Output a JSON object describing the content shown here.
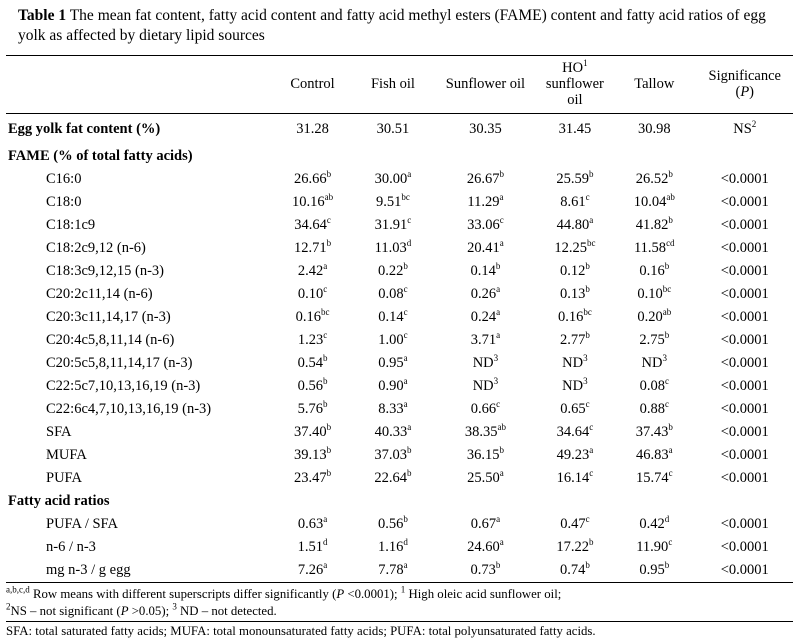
{
  "title": {
    "label": "Table 1",
    "text": "The mean fat content, fatty acid content and fatty acid methyl esters (FAME) content and fatty acid ratios of egg yolk as affected by dietary lipid sources"
  },
  "table": {
    "columns": [
      {
        "segments": []
      },
      {
        "segments": [
          {
            "t": "Control"
          }
        ]
      },
      {
        "segments": [
          {
            "t": "Fish oil"
          }
        ]
      },
      {
        "segments": [
          {
            "t": "Sunflower oil"
          }
        ]
      },
      {
        "segments": [
          {
            "t": "HO"
          },
          {
            "sup": "1"
          },
          {
            "t": " sunflower oil"
          }
        ]
      },
      {
        "segments": [
          {
            "t": "Tallow"
          }
        ]
      },
      {
        "segments": [
          {
            "t": "Significance ("
          },
          {
            "i": "P"
          },
          {
            "t": ")"
          }
        ]
      }
    ],
    "rows": [
      {
        "label": "Egg yolk fat content (%)",
        "bold": true,
        "indent": false,
        "cells": [
          {
            "t": "31.28"
          },
          {
            "t": "30.51"
          },
          {
            "t": "30.35"
          },
          {
            "t": "31.45"
          },
          {
            "t": "30.98"
          },
          {
            "t": "NS",
            "s": "2"
          }
        ]
      },
      {
        "section": "FAME (% of total fatty acids)"
      },
      {
        "label": "C16:0",
        "indent": true,
        "cells": [
          {
            "t": "26.66",
            "s": "b"
          },
          {
            "t": "30.00",
            "s": "a"
          },
          {
            "t": "26.67",
            "s": "b"
          },
          {
            "t": "25.59",
            "s": "b"
          },
          {
            "t": "26.52",
            "s": "b"
          },
          {
            "t": "<0.0001"
          }
        ]
      },
      {
        "label": "C18:0",
        "indent": true,
        "cells": [
          {
            "t": "10.16",
            "s": "ab"
          },
          {
            "t": "9.51",
            "s": "bc"
          },
          {
            "t": "11.29",
            "s": "a"
          },
          {
            "t": "8.61",
            "s": "c"
          },
          {
            "t": "10.04",
            "s": "ab"
          },
          {
            "t": "<0.0001"
          }
        ]
      },
      {
        "label": "C18:1c9",
        "indent": true,
        "cells": [
          {
            "t": "34.64",
            "s": "c"
          },
          {
            "t": "31.91",
            "s": "c"
          },
          {
            "t": "33.06",
            "s": "c"
          },
          {
            "t": "44.80",
            "s": "a"
          },
          {
            "t": "41.82",
            "s": "b"
          },
          {
            "t": "<0.0001"
          }
        ]
      },
      {
        "label": "C18:2c9,12 (n-6)",
        "indent": true,
        "cells": [
          {
            "t": "12.71",
            "s": "b"
          },
          {
            "t": "11.03",
            "s": "d"
          },
          {
            "t": "20.41",
            "s": "a"
          },
          {
            "t": "12.25",
            "s": "bc"
          },
          {
            "t": "11.58",
            "s": "cd"
          },
          {
            "t": "<0.0001"
          }
        ]
      },
      {
        "label": "C18:3c9,12,15 (n-3)",
        "indent": true,
        "cells": [
          {
            "t": "2.42",
            "s": "a"
          },
          {
            "t": "0.22",
            "s": "b"
          },
          {
            "t": "0.14",
            "s": "b"
          },
          {
            "t": "0.12",
            "s": "b"
          },
          {
            "t": "0.16",
            "s": "b"
          },
          {
            "t": "<0.0001"
          }
        ]
      },
      {
        "label": "C20:2c11,14 (n-6)",
        "indent": true,
        "cells": [
          {
            "t": "0.10",
            "s": "c"
          },
          {
            "t": "0.08",
            "s": "c"
          },
          {
            "t": "0.26",
            "s": "a"
          },
          {
            "t": "0.13",
            "s": "b"
          },
          {
            "t": "0.10",
            "s": "bc"
          },
          {
            "t": "<0.0001"
          }
        ]
      },
      {
        "label": "C20:3c11,14,17 (n-3)",
        "indent": true,
        "cells": [
          {
            "t": "0.16",
            "s": "bc"
          },
          {
            "t": "0.14",
            "s": "c"
          },
          {
            "t": "0.24",
            "s": "a"
          },
          {
            "t": "0.16",
            "s": "bc"
          },
          {
            "t": "0.20",
            "s": "ab"
          },
          {
            "t": "<0.0001"
          }
        ]
      },
      {
        "label": "C20:4c5,8,11,14 (n-6)",
        "indent": true,
        "cells": [
          {
            "t": "1.23",
            "s": "c"
          },
          {
            "t": "1.00",
            "s": "c"
          },
          {
            "t": "3.71",
            "s": "a"
          },
          {
            "t": "2.77",
            "s": "b"
          },
          {
            "t": "2.75",
            "s": "b"
          },
          {
            "t": "<0.0001"
          }
        ]
      },
      {
        "label": "C20:5c5,8,11,14,17 (n-3)",
        "indent": true,
        "cells": [
          {
            "t": "0.54",
            "s": "b"
          },
          {
            "t": "0.95",
            "s": "a"
          },
          {
            "t": "ND",
            "s": "3"
          },
          {
            "t": "ND",
            "s": "3"
          },
          {
            "t": "ND",
            "s": "3"
          },
          {
            "t": "<0.0001"
          }
        ]
      },
      {
        "label": "C22:5c7,10,13,16,19 (n-3)",
        "indent": true,
        "cells": [
          {
            "t": "0.56",
            "s": "b"
          },
          {
            "t": "0.90",
            "s": "a"
          },
          {
            "t": "ND",
            "s": "3"
          },
          {
            "t": "ND",
            "s": "3"
          },
          {
            "t": "0.08",
            "s": "c"
          },
          {
            "t": "<0.0001"
          }
        ]
      },
      {
        "label": "C22:6c4,7,10,13,16,19 (n-3)",
        "indent": true,
        "cells": [
          {
            "t": "5.76",
            "s": "b"
          },
          {
            "t": "8.33",
            "s": "a"
          },
          {
            "t": "0.66",
            "s": "c"
          },
          {
            "t": "0.65",
            "s": "c"
          },
          {
            "t": "0.88",
            "s": "c"
          },
          {
            "t": "<0.0001"
          }
        ]
      },
      {
        "label": "SFA",
        "indent": true,
        "cells": [
          {
            "t": "37.40",
            "s": "b"
          },
          {
            "t": "40.33",
            "s": "a"
          },
          {
            "t": "38.35",
            "s": "ab"
          },
          {
            "t": "34.64",
            "s": "c"
          },
          {
            "t": "37.43",
            "s": "b"
          },
          {
            "t": "<0.0001"
          }
        ]
      },
      {
        "label": "MUFA",
        "indent": true,
        "cells": [
          {
            "t": "39.13",
            "s": "b"
          },
          {
            "t": "37.03",
            "s": "b"
          },
          {
            "t": "36.15",
            "s": "b"
          },
          {
            "t": "49.23",
            "s": "a"
          },
          {
            "t": "46.83",
            "s": "a"
          },
          {
            "t": "<0.0001"
          }
        ]
      },
      {
        "label": "PUFA",
        "indent": true,
        "cells": [
          {
            "t": "23.47",
            "s": "b"
          },
          {
            "t": "22.64",
            "s": "b"
          },
          {
            "t": "25.50",
            "s": "a"
          },
          {
            "t": "16.14",
            "s": "c"
          },
          {
            "t": "15.74",
            "s": "c"
          },
          {
            "t": "<0.0001"
          }
        ]
      },
      {
        "section": "Fatty acid ratios"
      },
      {
        "label": "PUFA / SFA",
        "indent": true,
        "cells": [
          {
            "t": "0.63",
            "s": "a"
          },
          {
            "t": "0.56",
            "s": "b"
          },
          {
            "t": "0.67",
            "s": "a"
          },
          {
            "t": "0.47",
            "s": "c"
          },
          {
            "t": "0.42",
            "s": "d"
          },
          {
            "t": "<0.0001"
          }
        ]
      },
      {
        "label": "n-6 / n-3",
        "indent": true,
        "cells": [
          {
            "t": "1.51",
            "s": "d"
          },
          {
            "t": "1.16",
            "s": "d"
          },
          {
            "t": "24.60",
            "s": "a"
          },
          {
            "t": "17.22",
            "s": "b"
          },
          {
            "t": "11.90",
            "s": "c"
          },
          {
            "t": "<0.0001"
          }
        ]
      },
      {
        "label": "mg n-3 / g egg",
        "indent": true,
        "cells": [
          {
            "t": "7.26",
            "s": "a"
          },
          {
            "t": "7.78",
            "s": "a"
          },
          {
            "t": "0.73",
            "s": "b"
          },
          {
            "t": "0.74",
            "s": "b"
          },
          {
            "t": "0.95",
            "s": "b"
          },
          {
            "t": "<0.0001"
          }
        ]
      }
    ]
  },
  "footnotes": [
    {
      "segments": [
        {
          "sup": "a,b,c,d"
        },
        {
          "t": " Row means with different superscripts differ significantly ("
        },
        {
          "i": "P"
        },
        {
          "t": " <0.0001); "
        },
        {
          "sup": "1"
        },
        {
          "t": " High oleic acid sunflower oil;"
        }
      ]
    },
    {
      "segments": [
        {
          "sup": "2"
        },
        {
          "t": "NS – not significant ("
        },
        {
          "i": "P"
        },
        {
          "t": " >0.05); "
        },
        {
          "sup": "3"
        },
        {
          "t": " ND – not detected."
        }
      ]
    },
    {
      "segments": [
        {
          "t": "SFA: total saturated fatty acids; MUFA: total monounsaturated fatty acids; PUFA: total polyunsaturated fatty acids."
        }
      ]
    }
  ]
}
